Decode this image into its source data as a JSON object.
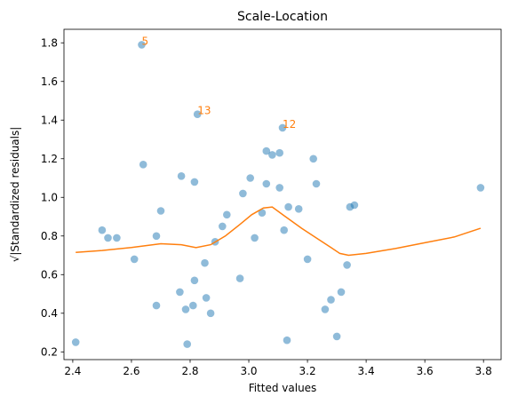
{
  "chart_data": {
    "type": "scatter",
    "title": "Scale-Location",
    "xlabel": "Fitted values",
    "ylabel": "√|Standardized residuals|",
    "xlim": [
      2.37,
      3.86
    ],
    "ylim": [
      0.16,
      1.87
    ],
    "x_ticks": [
      "2.4",
      "2.6",
      "2.8",
      "3.0",
      "3.2",
      "3.4",
      "3.6",
      "3.8"
    ],
    "x_tick_values": [
      2.4,
      2.6,
      2.8,
      3.0,
      3.2,
      3.4,
      3.6,
      3.8
    ],
    "y_ticks": [
      "0.2",
      "0.4",
      "0.6",
      "0.8",
      "1.0",
      "1.2",
      "1.4",
      "1.6",
      "1.8"
    ],
    "y_tick_values": [
      0.2,
      0.4,
      0.6,
      0.8,
      1.0,
      1.2,
      1.4,
      1.6,
      1.8
    ],
    "grid": false,
    "colors": {
      "points": "#1f77b4",
      "line": "#ff7f0e",
      "annotations": "#ff7f0e"
    },
    "points": [
      [
        2.41,
        0.25
      ],
      [
        2.5,
        0.83
      ],
      [
        2.52,
        0.79
      ],
      [
        2.55,
        0.79
      ],
      [
        2.61,
        0.68
      ],
      [
        2.635,
        1.79
      ],
      [
        2.64,
        1.17
      ],
      [
        2.685,
        0.8
      ],
      [
        2.685,
        0.44
      ],
      [
        2.7,
        0.93
      ],
      [
        2.765,
        0.51
      ],
      [
        2.77,
        1.11
      ],
      [
        2.785,
        0.42
      ],
      [
        2.79,
        0.24
      ],
      [
        2.81,
        0.44
      ],
      [
        2.815,
        1.08
      ],
      [
        2.815,
        0.57
      ],
      [
        2.825,
        1.43
      ],
      [
        2.85,
        0.66
      ],
      [
        2.855,
        0.48
      ],
      [
        2.87,
        0.4
      ],
      [
        2.885,
        0.77
      ],
      [
        2.91,
        0.85
      ],
      [
        2.925,
        0.91
      ],
      [
        2.97,
        0.58
      ],
      [
        2.98,
        1.02
      ],
      [
        3.005,
        1.1
      ],
      [
        3.02,
        0.79
      ],
      [
        3.045,
        0.92
      ],
      [
        3.06,
        1.24
      ],
      [
        3.06,
        1.07
      ],
      [
        3.08,
        1.22
      ],
      [
        3.105,
        1.23
      ],
      [
        3.105,
        1.05
      ],
      [
        3.115,
        1.36
      ],
      [
        3.12,
        0.83
      ],
      [
        3.13,
        0.26
      ],
      [
        3.135,
        0.95
      ],
      [
        3.17,
        0.94
      ],
      [
        3.2,
        0.68
      ],
      [
        3.22,
        1.2
      ],
      [
        3.23,
        1.07
      ],
      [
        3.26,
        0.42
      ],
      [
        3.28,
        0.47
      ],
      [
        3.3,
        0.28
      ],
      [
        3.315,
        0.51
      ],
      [
        3.335,
        0.65
      ],
      [
        3.345,
        0.95
      ],
      [
        3.36,
        0.96
      ],
      [
        3.79,
        1.05
      ]
    ],
    "lowess": [
      [
        2.41,
        0.715
      ],
      [
        2.5,
        0.725
      ],
      [
        2.6,
        0.74
      ],
      [
        2.7,
        0.76
      ],
      [
        2.77,
        0.755
      ],
      [
        2.82,
        0.74
      ],
      [
        2.87,
        0.755
      ],
      [
        2.92,
        0.8
      ],
      [
        2.97,
        0.86
      ],
      [
        3.01,
        0.91
      ],
      [
        3.05,
        0.945
      ],
      [
        3.08,
        0.95
      ],
      [
        3.12,
        0.905
      ],
      [
        3.18,
        0.84
      ],
      [
        3.24,
        0.78
      ],
      [
        3.28,
        0.74
      ],
      [
        3.31,
        0.71
      ],
      [
        3.34,
        0.7
      ],
      [
        3.4,
        0.71
      ],
      [
        3.5,
        0.735
      ],
      [
        3.6,
        0.765
      ],
      [
        3.7,
        0.795
      ],
      [
        3.79,
        0.84
      ]
    ],
    "annotations": [
      {
        "text": "5",
        "x": 2.635,
        "y": 1.79
      },
      {
        "text": "13",
        "x": 2.825,
        "y": 1.43
      },
      {
        "text": "12",
        "x": 3.115,
        "y": 1.36
      }
    ]
  }
}
